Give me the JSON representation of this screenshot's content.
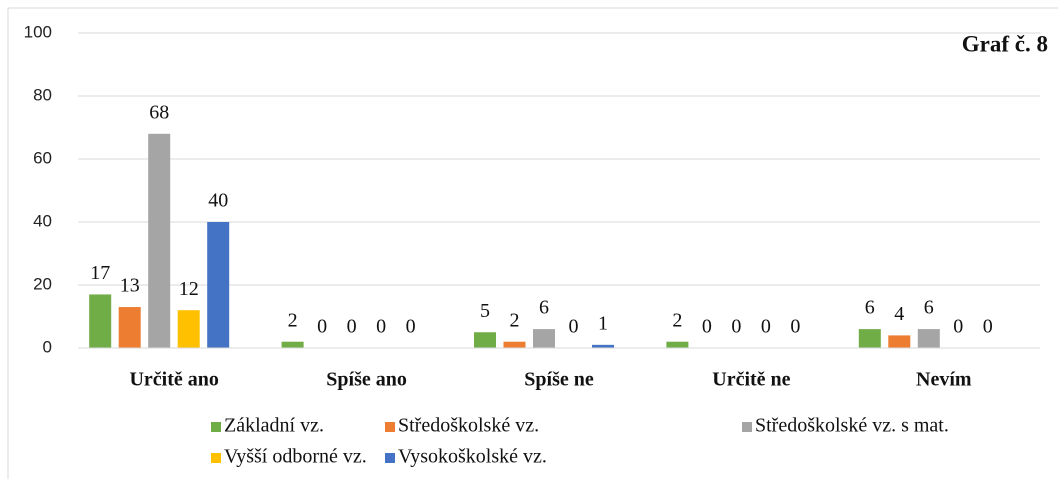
{
  "chart_data": {
    "type": "bar",
    "title": "Graf č. 8",
    "categories": [
      "Určitě ano",
      "Spíše ano",
      "Spíše ne",
      "Určitě ne",
      "Nevím"
    ],
    "series": [
      {
        "name": "Základní vz.",
        "color": "#70ad47",
        "values": [
          17,
          2,
          5,
          2,
          6
        ]
      },
      {
        "name": "Středoškolské vz.",
        "color": "#ed7d31",
        "values": [
          13,
          0,
          2,
          0,
          4
        ]
      },
      {
        "name": "Středoškolské vz. s mat.",
        "color": "#a5a5a5",
        "values": [
          68,
          0,
          6,
          0,
          6
        ]
      },
      {
        "name": "Vyšší odborné vz.",
        "color": "#ffc000",
        "values": [
          12,
          0,
          0,
          0,
          0
        ]
      },
      {
        "name": "Vysokoškolské vz.",
        "color": "#4472c4",
        "values": [
          40,
          0,
          1,
          0,
          0
        ]
      }
    ],
    "ylim": [
      0,
      100
    ],
    "yticks": [
      0,
      20,
      40,
      60,
      80,
      100
    ],
    "grid": true,
    "legend": "bottom"
  }
}
